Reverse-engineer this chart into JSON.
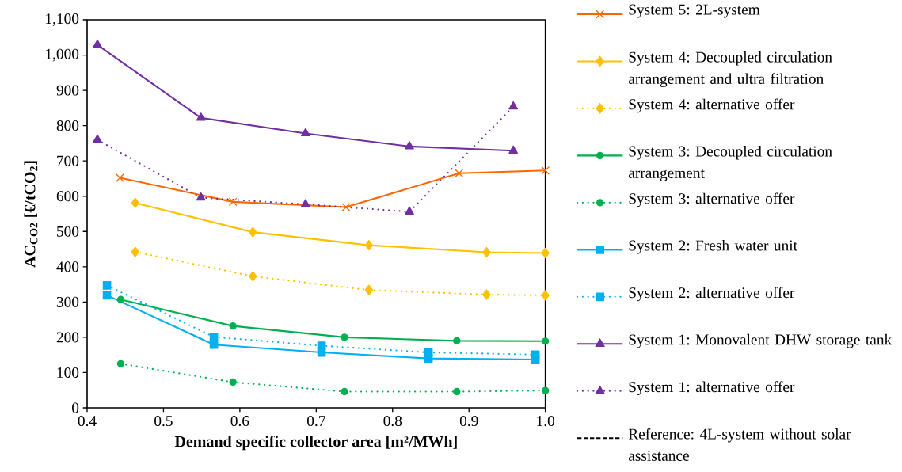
{
  "chart_data": {
    "type": "line",
    "xlabel": "Demand specific collector area [m²/MWh]",
    "ylabel": "AC$_{CO2}$ [€/tCO$_{2}$]",
    "xlim": [
      0.4,
      1.0
    ],
    "xticks": [
      {
        "value": 0.4,
        "label": "0.4"
      },
      0.5,
      0.6,
      0.7,
      0.8,
      0.9,
      {
        "value": 1.0,
        "label": "1.0"
      }
    ],
    "ylim": [
      0,
      1100
    ],
    "yticks": [
      0,
      100,
      200,
      300,
      400,
      500,
      600,
      700,
      800,
      900,
      {
        "value": 1000,
        "label": "1,000"
      },
      {
        "value": 1100,
        "label": "1,100"
      }
    ],
    "legend": "right",
    "series": [
      {
        "name": "System 5: 2L-system",
        "color": "#ff6600",
        "marker": "cross",
        "line_style": "solid",
        "x": [
          0.443,
          0.591,
          0.739,
          0.887,
          1.0
        ],
        "values": [
          652,
          584,
          569,
          665,
          673
        ]
      },
      {
        "name": "System 4: Decoupled circulation arrangement and ultra filtration",
        "color": "#ffc000",
        "marker": "diamond",
        "line_style": "solid",
        "x": [
          0.463,
          0.617,
          0.769,
          0.923,
          1.0
        ],
        "values": [
          581,
          498,
          461,
          441,
          439
        ]
      },
      {
        "name": "System 4: alternative offer",
        "color": "#ffc000",
        "marker": "diamond",
        "line_style": "dotted",
        "x": [
          0.463,
          0.617,
          0.769,
          0.923,
          1.0
        ],
        "values": [
          442,
          373,
          334,
          321,
          319
        ]
      },
      {
        "name": "System 3: Decoupled circulation arrangement",
        "color": "#00b050",
        "marker": "circle",
        "line_style": "solid",
        "x": [
          0.444,
          0.591,
          0.737,
          0.884,
          1.0
        ],
        "values": [
          307,
          232,
          200,
          190,
          189
        ]
      },
      {
        "name": "System 3: alternative offer",
        "color": "#00b050",
        "marker": "circle",
        "line_style": "dotted",
        "x": [
          0.444,
          0.591,
          0.737,
          0.884,
          1.0
        ],
        "values": [
          125,
          73,
          46,
          46,
          49
        ]
      },
      {
        "name": "System 2: Fresh water unit",
        "color": "#00b0f0",
        "marker": "square",
        "line_style": "solid",
        "x": [
          0.426,
          0.566,
          0.707,
          0.847,
          0.987
        ],
        "values": [
          319,
          179,
          157,
          140,
          137
        ]
      },
      {
        "name": "System 2: alternative offer",
        "color": "#00b0f0",
        "marker": "square",
        "line_style": "dotted",
        "x": [
          0.426,
          0.566,
          0.707,
          0.847,
          0.987
        ],
        "values": [
          347,
          201,
          176,
          157,
          151
        ]
      },
      {
        "name": "System 1: Monovalent DHW storage tank",
        "color": "#7030a0",
        "marker": "triangle",
        "line_style": "solid",
        "x": [
          0.4135,
          0.549,
          0.686,
          0.822,
          0.958
        ],
        "values": [
          1029,
          822,
          778,
          741,
          729
        ]
      },
      {
        "name": "System 1: alternative offer",
        "color": "#7030a0",
        "marker": "triangle",
        "line_style": "dotted",
        "x": [
          0.4135,
          0.549,
          0.686,
          0.822,
          0.958
        ],
        "values": [
          760,
          596,
          577,
          556,
          854
        ]
      },
      {
        "name": "Reference: 4L-system without solar assistance",
        "color": "#000000",
        "marker": "none",
        "line_style": "dashed"
      }
    ]
  }
}
